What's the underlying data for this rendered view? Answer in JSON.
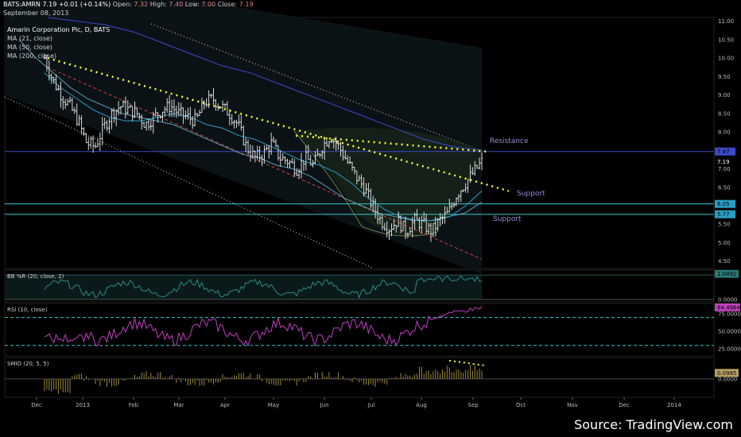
{
  "header": {
    "symbol": "BATS:AMRN",
    "last": "7.19",
    "change": "+0.01 (+0.14%)",
    "open_label": "Open:",
    "open": "7.32",
    "high_label": "High:",
    "high": "7.40",
    "low_label": "Low:",
    "low": "7.00",
    "close_label": "Close:",
    "close": "7.19",
    "date": "September 08, 2013"
  },
  "legend": [
    "Amarin Corporation Plc, D, BATS",
    "MA (21, close)",
    "MA (50, close)",
    "MA (200, close)"
  ],
  "source": "Source: TradingView.com",
  "colors": {
    "bg": "#000000",
    "up": "#d8d8d8",
    "ma21": "#2a9dc4",
    "ma50": "#5aa0b8",
    "ma200": "#3a4ac8",
    "trend": "#ffff33",
    "resistance": "#8080e0",
    "support": "#33cccc",
    "rsi": "#c040c0",
    "bb": "#2a8a8a"
  },
  "chart_data": [
    {
      "type": "candlestick",
      "title": "Amarin Corporation Plc, D, BATS",
      "x_ticks": [
        "Dec",
        "2013",
        "Feb",
        "Mar",
        "Apr",
        "May",
        "Jun",
        "Jul",
        "Aug",
        "Sep",
        "Oct",
        "Nov",
        "Dec",
        "2014"
      ],
      "ylim": [
        4.3,
        11.1
      ],
      "y_ticks": [
        "11.00",
        "10.50",
        "10.00",
        "9.50",
        "9.00",
        "8.50",
        "8.00",
        "7.50",
        "7.00",
        "6.50",
        "6.00",
        "5.50",
        "5.00",
        "4.50"
      ],
      "close_path": [
        10.0,
        9.4,
        9.0,
        8.7,
        8.3,
        7.7,
        7.6,
        8.1,
        8.5,
        8.7,
        8.6,
        8.5,
        8.2,
        8.4,
        8.6,
        8.7,
        8.5,
        8.4,
        8.3,
        8.8,
        8.9,
        8.7,
        8.5,
        8.2,
        7.6,
        7.3,
        7.4,
        7.7,
        7.3,
        7.2,
        7.0,
        7.3,
        7.1,
        7.6,
        7.9,
        7.6,
        7.2,
        6.8,
        6.5,
        6.0,
        5.6,
        5.4,
        5.6,
        5.3,
        5.6,
        5.5,
        5.3,
        5.6,
        5.8,
        6.3,
        6.6,
        6.9,
        7.19
      ],
      "ma_values": {
        "ma21": [
          9.6,
          9.2,
          8.9,
          8.6,
          8.4,
          8.3,
          8.3,
          8.4,
          8.5,
          8.4,
          8.2,
          8.1,
          7.9,
          7.8,
          7.6,
          7.4,
          7.2,
          7.1,
          6.9,
          6.6,
          6.2,
          5.9,
          5.7,
          5.6,
          5.6,
          5.7,
          6.0,
          6.4
        ],
        "ma50": [
          10.5,
          10.0,
          9.6,
          9.2,
          8.9,
          8.7,
          8.5,
          8.4,
          8.3,
          8.2,
          8.0,
          7.8,
          7.6,
          7.4,
          7.3,
          7.1,
          7.0,
          6.8,
          6.5,
          6.2,
          6.0,
          5.8,
          5.7,
          5.6,
          5.6,
          5.7,
          5.8,
          6.1
        ],
        "ma200": [
          11.1,
          11.0,
          10.9,
          10.7,
          10.4,
          10.1,
          9.8,
          9.6,
          9.3,
          9.0,
          8.7,
          8.4,
          8.1,
          7.8,
          7.6,
          7.5
        ]
      },
      "price_tags": [
        {
          "label": "7.47",
          "value": 7.47,
          "color": "#3a4ac8"
        },
        {
          "label": "7.19",
          "value": 7.19,
          "color": "#ffffff"
        },
        {
          "label": "6.05",
          "value": 6.05,
          "color": "#2a9dc4"
        },
        {
          "label": "5.77",
          "value": 5.77,
          "color": "#2a9dc4"
        }
      ],
      "horizontal_lines": [
        {
          "value": 7.47,
          "color": "#3a4ac8",
          "annotation": "Resistance"
        },
        {
          "value": 6.05,
          "color": "#33cccc",
          "annotation": "Support"
        },
        {
          "value": 5.77,
          "color": "#33cccc",
          "annotation": "Support"
        }
      ]
    },
    {
      "type": "line",
      "title": "BB %R (20, close, 2)",
      "ylim": [
        -0.1,
        1.2
      ],
      "y_ticks": [
        "0.0000"
      ],
      "last_label": "1.0492",
      "last_value": 1.0492
    },
    {
      "type": "line",
      "title": "RSI (10, close)",
      "ylim": [
        15,
        90
      ],
      "y_ticks": [
        "75.0000",
        "50.0000",
        "25.0000"
      ],
      "last_label": "84.4964",
      "last_value": 84.4964,
      "levels": [
        70,
        30
      ]
    },
    {
      "type": "bar",
      "title": "SMIO (20, 5, 5)",
      "ylim": [
        -0.3,
        0.35
      ],
      "y_ticks": [
        "0.0000"
      ],
      "last_label": "0.0985",
      "last_value": 0.0985
    }
  ]
}
